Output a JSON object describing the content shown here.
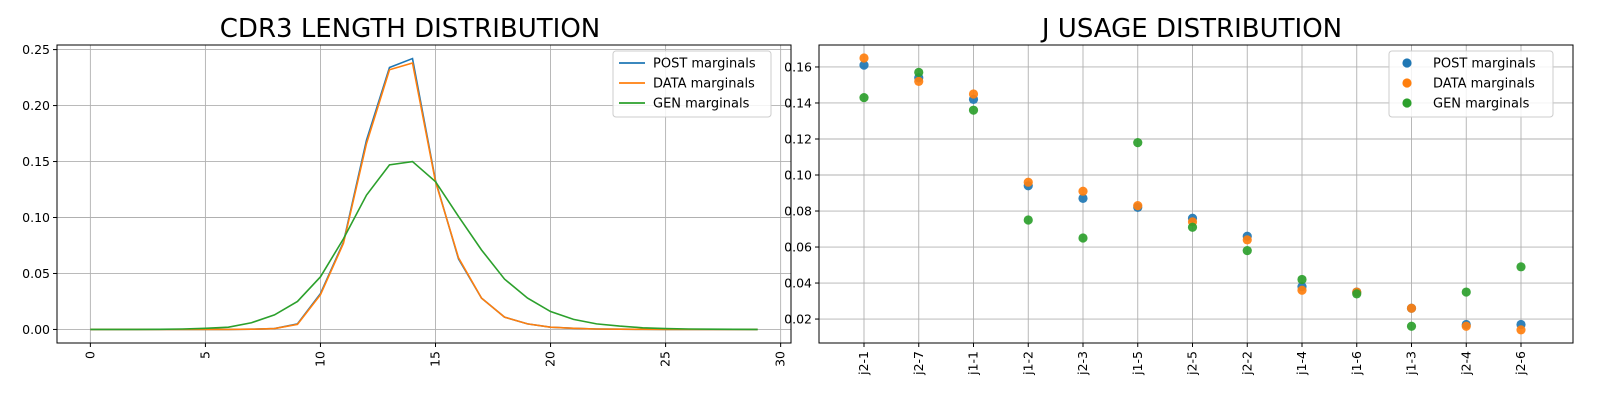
{
  "chart_data": [
    {
      "type": "line",
      "title": "CDR3 LENGTH DISTRIBUTION",
      "xlabel": "",
      "ylabel": "",
      "xlim": [
        -1.45,
        30.45
      ],
      "ylim": [
        -0.0121,
        0.2541
      ],
      "xticks": [
        "0",
        "5",
        "10",
        "15",
        "20",
        "25",
        "30"
      ],
      "yticks": [
        "0.00",
        "0.05",
        "0.10",
        "0.15",
        "0.20",
        "0.25"
      ],
      "grid": true,
      "legend_position": "top-right",
      "x": [
        0,
        1,
        2,
        3,
        4,
        5,
        6,
        7,
        8,
        9,
        10,
        11,
        12,
        13,
        14,
        15,
        16,
        17,
        18,
        19,
        20,
        21,
        22,
        23,
        24,
        25,
        26,
        27,
        28,
        29
      ],
      "series": [
        {
          "name": "POST marginals",
          "color": "#1f77b4",
          "values": [
            0,
            0,
            0,
            0,
            0,
            0,
            0,
            0.0002,
            0.0008,
            0.005,
            0.032,
            0.078,
            0.169,
            0.234,
            0.242,
            0.133,
            0.063,
            0.028,
            0.011,
            0.005,
            0.002,
            0.001,
            0.0004,
            0.0002,
            0.0001,
            0,
            0,
            0,
            0,
            0
          ]
        },
        {
          "name": "DATA marginals",
          "color": "#ff7f0e",
          "values": [
            0,
            0,
            0,
            0,
            0,
            0,
            0,
            0.0002,
            0.0008,
            0.0045,
            0.031,
            0.077,
            0.166,
            0.232,
            0.238,
            0.132,
            0.064,
            0.028,
            0.011,
            0.005,
            0.002,
            0.001,
            0.0004,
            0.0002,
            0.0001,
            0,
            0,
            0,
            0,
            0
          ]
        },
        {
          "name": "GEN marginals",
          "color": "#2ca02c",
          "values": [
            0,
            0,
            0,
            0.0001,
            0.0004,
            0.001,
            0.002,
            0.006,
            0.013,
            0.025,
            0.047,
            0.081,
            0.12,
            0.147,
            0.15,
            0.132,
            0.101,
            0.071,
            0.045,
            0.028,
            0.016,
            0.009,
            0.005,
            0.003,
            0.0015,
            0.0008,
            0.0004,
            0.0002,
            0.0001,
            0
          ]
        }
      ]
    },
    {
      "type": "scatter",
      "title": "J USAGE DISTRIBUTION",
      "xlabel": "",
      "ylabel": "",
      "ylim": [
        0.0067,
        0.1722
      ],
      "yticks": [
        "0.02",
        "0.04",
        "0.06",
        "0.08",
        "0.10",
        "0.12",
        "0.14",
        "0.16"
      ],
      "grid": true,
      "legend_position": "top-right",
      "categories": [
        "j2-1",
        "j2-7",
        "j1-1",
        "j1-2",
        "j2-3",
        "j1-5",
        "j2-5",
        "j2-2",
        "j1-4",
        "j1-6",
        "j1-3",
        "j2-4",
        "j2-6"
      ],
      "series": [
        {
          "name": "POST marginals",
          "color": "#1f77b4",
          "values": [
            0.161,
            0.154,
            0.142,
            0.094,
            0.087,
            0.082,
            0.076,
            0.066,
            0.038,
            0.035,
            0.026,
            0.017,
            0.017
          ]
        },
        {
          "name": "DATA marginals",
          "color": "#ff7f0e",
          "values": [
            0.165,
            0.152,
            0.145,
            0.096,
            0.091,
            0.083,
            0.074,
            0.064,
            0.036,
            0.035,
            0.026,
            0.016,
            0.014
          ]
        },
        {
          "name": "GEN marginals",
          "color": "#2ca02c",
          "values": [
            0.143,
            0.157,
            0.136,
            0.075,
            0.065,
            0.118,
            0.071,
            0.058,
            0.042,
            0.034,
            0.016,
            0.035,
            0.049
          ]
        }
      ]
    }
  ]
}
